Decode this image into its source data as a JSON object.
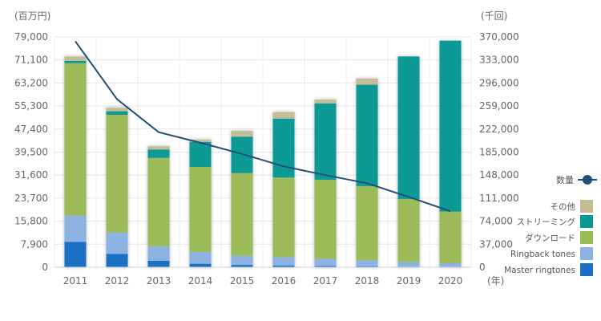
{
  "chart_data": {
    "type": "bar",
    "stacked": true,
    "left_unit": "(百万円)",
    "right_unit": "(千回)",
    "x_unit": "(年)",
    "categories": [
      "2011",
      "2012",
      "2013",
      "2014",
      "2015",
      "2016",
      "2017",
      "2018",
      "2019",
      "2020"
    ],
    "left_ticks": [
      0,
      7900,
      15800,
      23700,
      31600,
      39500,
      47400,
      55300,
      63200,
      71100,
      79000
    ],
    "left_tick_labels": [
      "0",
      "7,900",
      "15,800",
      "23,700",
      "31,600",
      "39,500",
      "47,400",
      "55,300",
      "63,200",
      "71,100",
      "79,000"
    ],
    "right_tick_labels": [
      "0",
      "37,000",
      "74,000",
      "111,000",
      "148,000",
      "185,000",
      "222,000",
      "259,000",
      "296,000",
      "333,000",
      "370,000"
    ],
    "ylim_left": [
      0,
      79000
    ],
    "ylim_right": [
      0,
      370000
    ],
    "grid": true,
    "legend_position": "right",
    "series": [
      {
        "name": "Master ringtones",
        "color": "#1a6fc4",
        "values": [
          8700,
          4600,
          2200,
          1200,
          800,
          600,
          400,
          300,
          200,
          100
        ]
      },
      {
        "name": "Ringback tones",
        "color": "#8db3e2",
        "values": [
          9000,
          7300,
          5000,
          4000,
          3100,
          2900,
          2500,
          2100,
          1600,
          1300
        ]
      },
      {
        "name": "ダウンロード",
        "color": "#9bbb59",
        "values": [
          52300,
          40400,
          30300,
          29200,
          28400,
          27300,
          27100,
          25400,
          21600,
          17700
        ]
      },
      {
        "name": "ストリーミング",
        "color": "#0a9a96",
        "values": [
          800,
          1200,
          2900,
          8600,
          12500,
          20200,
          26200,
          34800,
          48900,
          58600
        ]
      },
      {
        "name": "その他",
        "color": "#c4bd97",
        "values": [
          1500,
          1200,
          1100,
          800,
          2000,
          2200,
          1300,
          2100,
          0,
          0
        ]
      }
    ],
    "line": {
      "name": "数量",
      "color": "#1f4e79",
      "values": [
        363000,
        270000,
        217000,
        200000,
        182000,
        162000,
        148000,
        135000,
        113000,
        90000
      ]
    }
  }
}
